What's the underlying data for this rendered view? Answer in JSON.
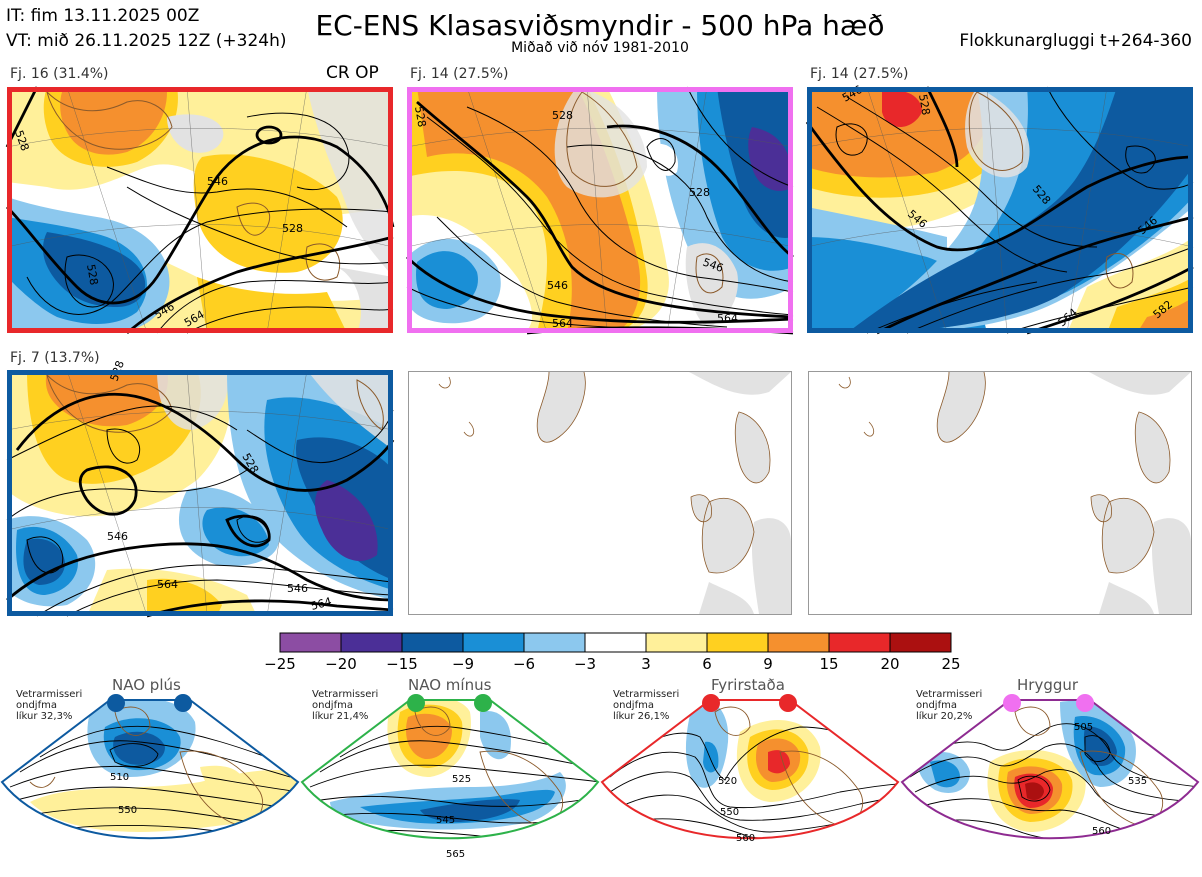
{
  "header": {
    "issue_time": "IT: fim 13.11.2025 00Z",
    "valid_time": "VT: mið 26.11.2025 12Z  (+324h)",
    "title": "EC-ENS Klasasviðsmyndir - 500 hPa hæð",
    "subtitle": "Miðað við nóv 1981-2010",
    "cluster_window": "Flokkunargluggi t+264-360"
  },
  "colors": {
    "cluster1": "#e8282a",
    "cluster2": "#f070f0",
    "cluster3": "#0d5aa0",
    "cluster4": "#0d5aa0",
    "land": "#e2e2e2",
    "coast": "#8b5a2b"
  },
  "chart_data": [
    {
      "type": "heatmap",
      "panel": "cluster-1",
      "label": "Fj. 16 (31.4%)",
      "tag": "CR OP",
      "contour_labels": [
        "528",
        "528",
        "546",
        "528",
        "546",
        "564"
      ]
    },
    {
      "type": "heatmap",
      "panel": "cluster-2",
      "label": "Fj. 14 (27.5%)",
      "contour_labels": [
        "528",
        "528",
        "528",
        "546",
        "546",
        "564",
        "564"
      ]
    },
    {
      "type": "heatmap",
      "panel": "cluster-3",
      "label": "Fj. 14 (27.5%)",
      "contour_labels": [
        "546",
        "528",
        "546",
        "528",
        "546",
        "564",
        "582"
      ]
    },
    {
      "type": "heatmap",
      "panel": "cluster-4",
      "label": "Fj. 7 (13.7%)",
      "contour_labels": [
        "528",
        "528",
        "546",
        "564",
        "546",
        "564"
      ]
    },
    {
      "type": "colorbar",
      "ticks": [
        "−25",
        "−20",
        "−15",
        "−9",
        "−6",
        "−3",
        "3",
        "6",
        "9",
        "15",
        "20",
        "25"
      ],
      "colors": [
        "#8c4da3",
        "#4b2f97",
        "#0d5aa0",
        "#1a8fd6",
        "#8cc8ee",
        "#ffffff",
        "#fff09a",
        "#ffd020",
        "#f5902e",
        "#e8282a",
        "#ab1010"
      ]
    },
    {
      "type": "heatmap",
      "panel": "regime-nao-plus",
      "title": "NAO plús",
      "note": "Vetrarmisseri\nondjfma\nlíkur 32,3%",
      "dot_color": "#0d5aa0",
      "contour_labels": [
        "510",
        "550"
      ]
    },
    {
      "type": "heatmap",
      "panel": "regime-nao-minus",
      "title": "NAO mínus",
      "note": "Vetrarmisseri\nondjfma\nlíkur 21,4%",
      "dot_color": "#2db24a",
      "contour_labels": [
        "525",
        "545",
        "565"
      ]
    },
    {
      "type": "heatmap",
      "panel": "regime-blocking",
      "title": "Fyrirstaða",
      "note": "Vetrarmisseri\nondjfma\nlíkur 26,1%",
      "dot_color": "#e8282a",
      "contour_labels": [
        "520",
        "550",
        "560"
      ]
    },
    {
      "type": "heatmap",
      "panel": "regime-ridge",
      "title": "Hryggur",
      "note": "Vetrarmisseri\nondjfma\nlíkur 20,2%",
      "dot_color": "#f070f0",
      "contour_labels": [
        "505",
        "535",
        "560"
      ]
    }
  ]
}
